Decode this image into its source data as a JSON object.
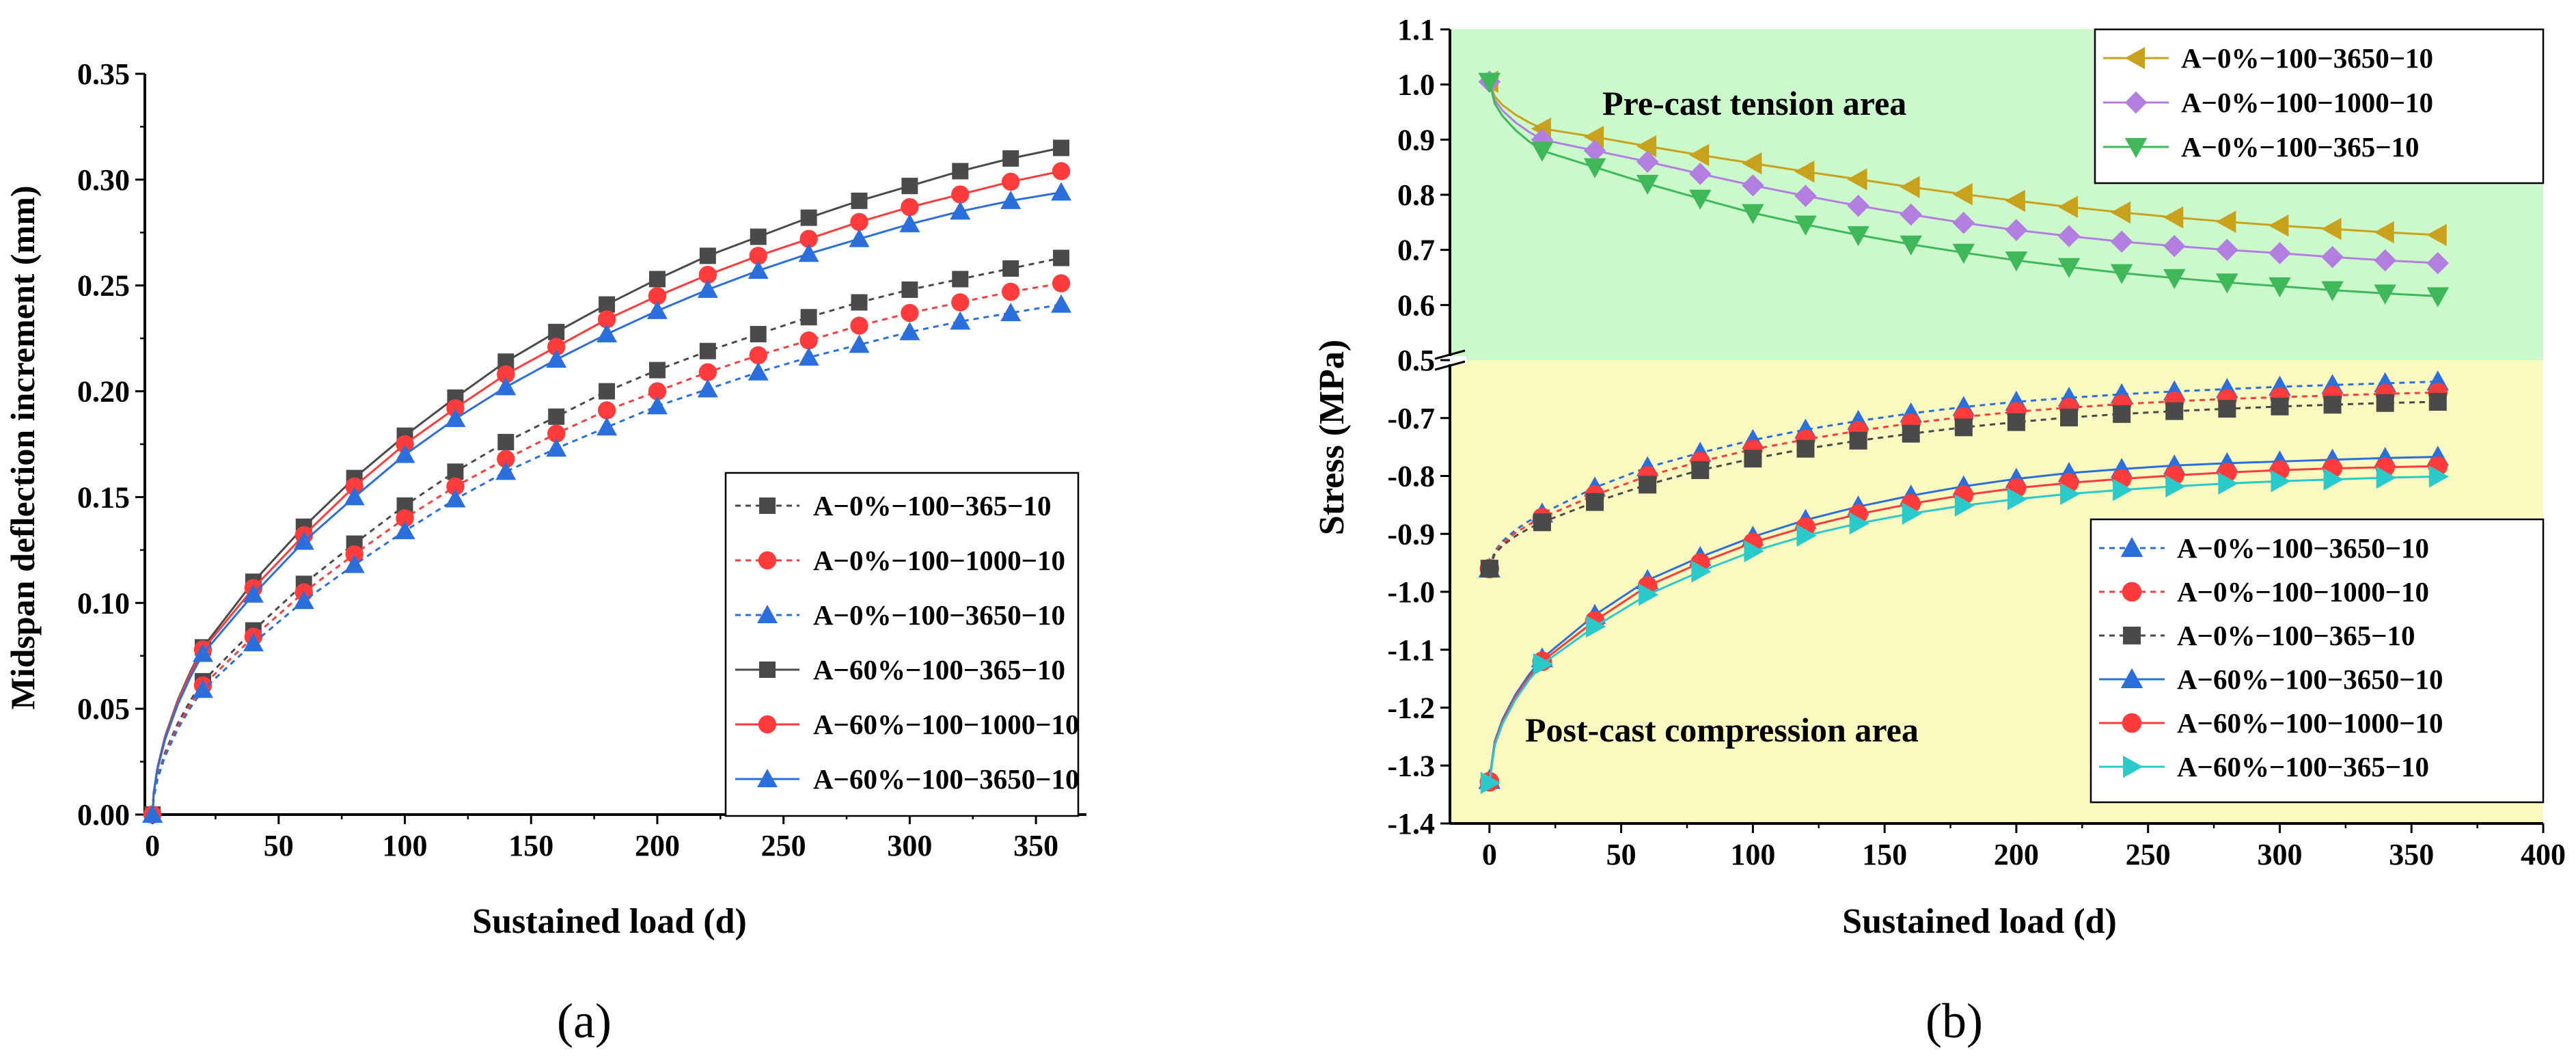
{
  "chart_data": [
    {
      "panel_label": "(a)",
      "type": "line",
      "xlabel": "Sustained load  (d)",
      "ylabel": "Midspan deflection increment (mm)",
      "xlim": [
        -3,
        370
      ],
      "ylim": [
        0,
        0.35
      ],
      "xticks": [
        "0",
        "50",
        "100",
        "150",
        "200",
        "250",
        "300",
        "350"
      ],
      "yticks": [
        "0.00",
        "0.05",
        "0.10",
        "0.15",
        "0.20",
        "0.25",
        "0.30",
        "0.35"
      ],
      "x": [
        0,
        20,
        40,
        60,
        80,
        100,
        120,
        140,
        160,
        180,
        200,
        220,
        240,
        260,
        280,
        300,
        320,
        340,
        360
      ],
      "legend_position": "lower-right",
      "series": [
        {
          "name": "A−0%−100−365−10",
          "color": "#4a4a4a",
          "marker": "square",
          "dashed": true,
          "values": [
            0,
            0.063,
            0.087,
            0.109,
            0.128,
            0.146,
            0.162,
            0.176,
            0.188,
            0.2,
            0.21,
            0.219,
            0.227,
            0.235,
            0.242,
            0.248,
            0.253,
            0.258,
            0.263
          ]
        },
        {
          "name": "A−0%−100−1000−10",
          "color": "#ff3b3b",
          "marker": "circle",
          "dashed": true,
          "values": [
            0,
            0.061,
            0.084,
            0.105,
            0.123,
            0.14,
            0.155,
            0.168,
            0.18,
            0.191,
            0.2,
            0.209,
            0.217,
            0.224,
            0.231,
            0.237,
            0.242,
            0.247,
            0.251
          ]
        },
        {
          "name": "A−0%−100−3650−10",
          "color": "#2a6fdb",
          "marker": "triangle",
          "dashed": true,
          "values": [
            0,
            0.059,
            0.081,
            0.101,
            0.118,
            0.134,
            0.149,
            0.162,
            0.173,
            0.183,
            0.193,
            0.201,
            0.209,
            0.216,
            0.222,
            0.228,
            0.233,
            0.237,
            0.241
          ]
        },
        {
          "name": "A−60%−100−365−10",
          "color": "#4a4a4a",
          "marker": "square",
          "dashed": false,
          "values": [
            0,
            0.079,
            0.11,
            0.136,
            0.159,
            0.179,
            0.197,
            0.214,
            0.228,
            0.241,
            0.253,
            0.264,
            0.273,
            0.282,
            0.29,
            0.297,
            0.304,
            0.31,
            0.315
          ]
        },
        {
          "name": "A−60%−100−1000−10",
          "color": "#ff3b3b",
          "marker": "circle",
          "dashed": false,
          "values": [
            0,
            0.078,
            0.107,
            0.132,
            0.155,
            0.175,
            0.192,
            0.208,
            0.221,
            0.234,
            0.245,
            0.255,
            0.264,
            0.272,
            0.28,
            0.287,
            0.293,
            0.299,
            0.304
          ]
        },
        {
          "name": "A−60%−100−3650−10",
          "color": "#2a6fdb",
          "marker": "triangle",
          "dashed": false,
          "values": [
            0,
            0.076,
            0.104,
            0.129,
            0.15,
            0.17,
            0.187,
            0.202,
            0.215,
            0.227,
            0.238,
            0.248,
            0.257,
            0.265,
            0.272,
            0.279,
            0.285,
            0.29,
            0.294
          ]
        }
      ]
    },
    {
      "panel_label": "(b)",
      "type": "line",
      "xlabel": "Sustained load  (d)",
      "ylabel": "Stress (MPa)",
      "xlim": [
        -15,
        400
      ],
      "ylim": [
        -1.4,
        1.1
      ],
      "y_axis_break": [
        -0.6,
        0.5
      ],
      "xticks": [
        "0",
        "50",
        "100",
        "150",
        "200",
        "250",
        "300",
        "350",
        "400"
      ],
      "yticks_upper": [
        "0.5",
        "0.6",
        "0.7",
        "0.8",
        "0.9",
        "1.0",
        "1.1"
      ],
      "yticks_lower": [
        "-0.7",
        "-0.8",
        "-0.9",
        "-1.0",
        "-1.1",
        "-1.2",
        "-1.3",
        "-1.4"
      ],
      "upper_region": {
        "label": "Pre-cast tension area",
        "color": "#ccf9cc"
      },
      "lower_region": {
        "label": "Post-cast compression area",
        "color": "#f9f9c0"
      },
      "x": [
        0,
        20,
        40,
        60,
        80,
        100,
        120,
        140,
        160,
        180,
        200,
        220,
        240,
        260,
        280,
        300,
        320,
        340,
        360
      ],
      "legend_upper_position": "top-right",
      "legend_lower_position": "lower-right",
      "series_upper": [
        {
          "name": "A−0%−100−3650−10",
          "color": "#c8a21c",
          "marker": "triangle-left",
          "values": [
            1.005,
            0.92,
            0.905,
            0.888,
            0.872,
            0.857,
            0.842,
            0.828,
            0.814,
            0.801,
            0.789,
            0.778,
            0.768,
            0.759,
            0.751,
            0.744,
            0.738,
            0.732,
            0.727
          ]
        },
        {
          "name": "A−0%−100−1000−10",
          "color": "#b27fe0",
          "marker": "diamond",
          "values": [
            1.005,
            0.9,
            0.88,
            0.86,
            0.838,
            0.817,
            0.798,
            0.78,
            0.764,
            0.749,
            0.736,
            0.725,
            0.715,
            0.707,
            0.7,
            0.694,
            0.687,
            0.681,
            0.676
          ]
        },
        {
          "name": "A−0%−100−365−10",
          "color": "#3fb85a",
          "marker": "triangle-down",
          "values": [
            1.005,
            0.88,
            0.85,
            0.82,
            0.793,
            0.767,
            0.746,
            0.727,
            0.71,
            0.695,
            0.681,
            0.669,
            0.658,
            0.649,
            0.641,
            0.634,
            0.627,
            0.621,
            0.616
          ]
        }
      ],
      "series_lower": [
        {
          "name": "A−0%−100−3650−10",
          "color": "#2a6fdb",
          "marker": "triangle",
          "dashed": true,
          "values": [
            -0.96,
            -0.865,
            -0.82,
            -0.785,
            -0.76,
            -0.738,
            -0.72,
            -0.705,
            -0.692,
            -0.681,
            -0.672,
            -0.665,
            -0.659,
            -0.654,
            -0.65,
            -0.646,
            -0.643,
            -0.64,
            -0.637
          ]
        },
        {
          "name": "A−0%−100−1000−10",
          "color": "#ff3b3b",
          "marker": "circle",
          "dashed": true,
          "values": [
            -0.96,
            -0.872,
            -0.833,
            -0.8,
            -0.775,
            -0.754,
            -0.737,
            -0.722,
            -0.709,
            -0.698,
            -0.689,
            -0.682,
            -0.676,
            -0.671,
            -0.667,
            -0.664,
            -0.661,
            -0.658,
            -0.656
          ]
        },
        {
          "name": "A−0%−100−365−10",
          "color": "#4a4a4a",
          "marker": "square",
          "dashed": true,
          "values": [
            -0.96,
            -0.88,
            -0.845,
            -0.815,
            -0.79,
            -0.77,
            -0.753,
            -0.739,
            -0.727,
            -0.716,
            -0.707,
            -0.699,
            -0.693,
            -0.688,
            -0.684,
            -0.68,
            -0.677,
            -0.674,
            -0.672
          ]
        },
        {
          "name": "A−60%−100−3650−10",
          "color": "#2a6fdb",
          "marker": "triangle",
          "dashed": false,
          "values": [
            -1.325,
            -1.115,
            -1.04,
            -0.98,
            -0.94,
            -0.905,
            -0.876,
            -0.853,
            -0.834,
            -0.818,
            -0.805,
            -0.795,
            -0.788,
            -0.782,
            -0.778,
            -0.775,
            -0.772,
            -0.769,
            -0.767
          ]
        },
        {
          "name": "A−60%−100−1000−10",
          "color": "#ff3b3b",
          "marker": "circle",
          "dashed": false,
          "values": [
            -1.328,
            -1.12,
            -1.05,
            -0.99,
            -0.95,
            -0.915,
            -0.888,
            -0.866,
            -0.848,
            -0.833,
            -0.821,
            -0.812,
            -0.805,
            -0.799,
            -0.794,
            -0.79,
            -0.787,
            -0.785,
            -0.783
          ]
        },
        {
          "name": "A−60%−100−365−10",
          "color": "#2bcaca",
          "marker": "triangle-right",
          "dashed": false,
          "values": [
            -1.33,
            -1.125,
            -1.06,
            -1.005,
            -0.965,
            -0.93,
            -0.903,
            -0.882,
            -0.865,
            -0.851,
            -0.84,
            -0.831,
            -0.824,
            -0.818,
            -0.813,
            -0.809,
            -0.806,
            -0.803,
            -0.801
          ]
        }
      ]
    }
  ]
}
